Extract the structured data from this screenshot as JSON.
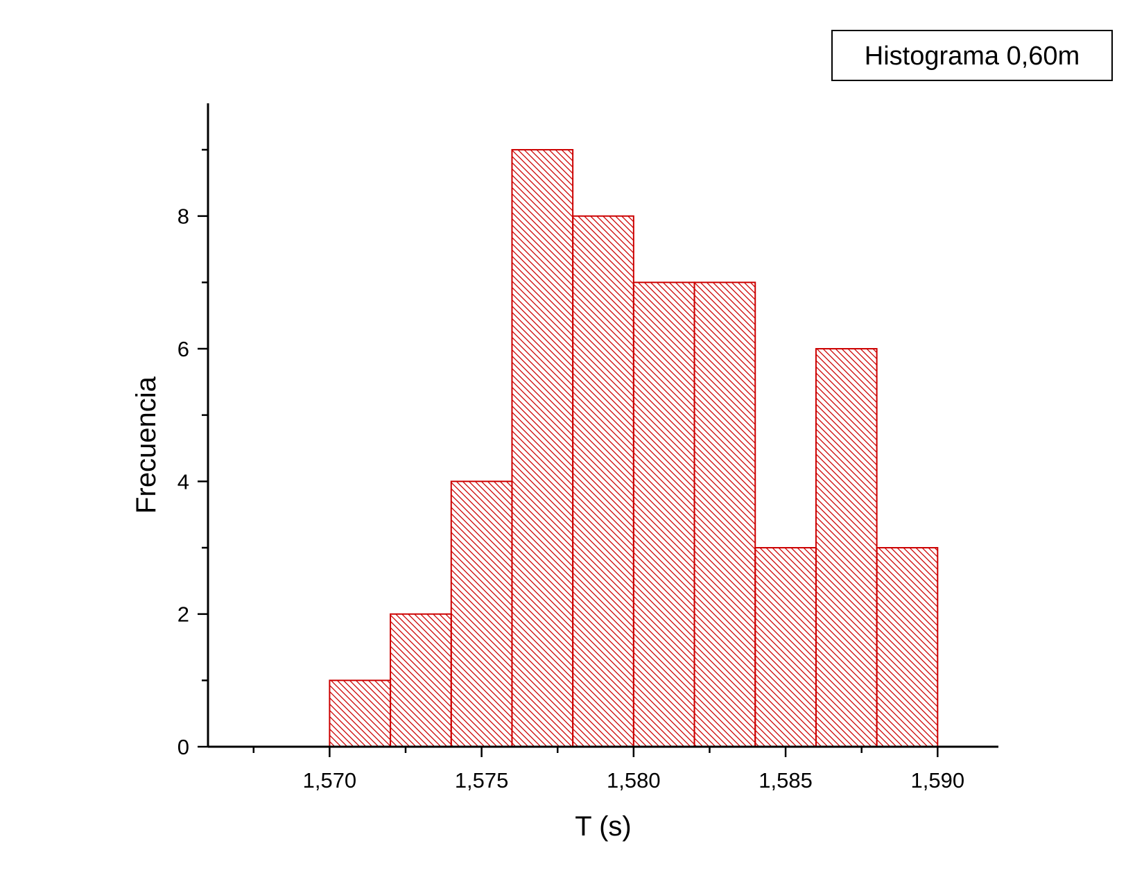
{
  "chart_data": {
    "type": "bar",
    "subtype": "histogram",
    "legend": "Histograma 0,60m",
    "legend_position": "top-right",
    "xlabel": "T (s)",
    "ylabel": "Frecuencia",
    "bins": [
      {
        "start": 1.57,
        "end": 1.572,
        "count": 1
      },
      {
        "start": 1.572,
        "end": 1.574,
        "count": 2
      },
      {
        "start": 1.574,
        "end": 1.576,
        "count": 4
      },
      {
        "start": 1.576,
        "end": 1.578,
        "count": 9
      },
      {
        "start": 1.578,
        "end": 1.58,
        "count": 8
      },
      {
        "start": 1.58,
        "end": 1.582,
        "count": 7
      },
      {
        "start": 1.582,
        "end": 1.584,
        "count": 7
      },
      {
        "start": 1.584,
        "end": 1.586,
        "count": 3
      },
      {
        "start": 1.586,
        "end": 1.588,
        "count": 6
      },
      {
        "start": 1.588,
        "end": 1.59,
        "count": 3
      }
    ],
    "xlim": [
      1.566,
      1.592
    ],
    "ylim": [
      0,
      9.7
    ],
    "x_ticks": [
      {
        "value": 1.57,
        "label": "1,570"
      },
      {
        "value": 1.575,
        "label": "1,575"
      },
      {
        "value": 1.58,
        "label": "1,580"
      },
      {
        "value": 1.585,
        "label": "1,585"
      },
      {
        "value": 1.59,
        "label": "1,590"
      }
    ],
    "x_minor_ticks": [
      1.5675,
      1.5725,
      1.5775,
      1.5825,
      1.5875
    ],
    "y_ticks": [
      {
        "value": 0,
        "label": "0"
      },
      {
        "value": 2,
        "label": "2"
      },
      {
        "value": 4,
        "label": "4"
      },
      {
        "value": 6,
        "label": "6"
      },
      {
        "value": 8,
        "label": "8"
      }
    ],
    "y_minor_ticks": [
      1,
      3,
      5,
      7,
      9
    ],
    "bar_color": "#cc0000",
    "bar_fill": "diagonal-hatch",
    "grid": false
  }
}
